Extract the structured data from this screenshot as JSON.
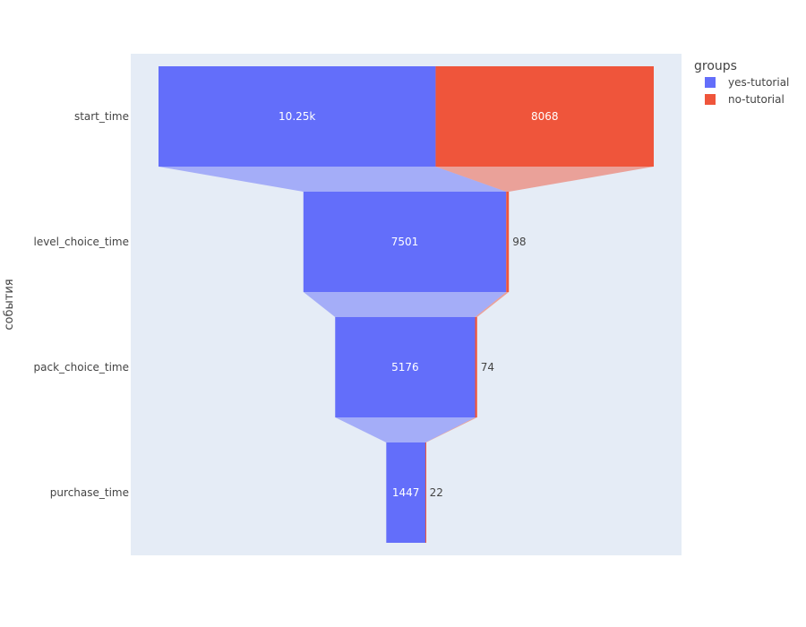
{
  "chart_data": {
    "type": "funnel",
    "ylabel": "события",
    "categories": [
      "start_time",
      "level_choice_time",
      "pack_choice_time",
      "purchase_time"
    ],
    "legend": {
      "title": "groups",
      "placement": "top-right"
    },
    "series": [
      {
        "name": "yes-tutorial",
        "color": "#636EFA",
        "values": [
          10250,
          7501,
          5176,
          1447
        ],
        "labels": [
          "10.25k",
          "7501",
          "5176",
          "1447"
        ]
      },
      {
        "name": "no-tutorial",
        "color": "#EF553B",
        "values": [
          8068,
          98,
          74,
          22
        ],
        "labels": [
          "8068",
          "98",
          "74",
          "22"
        ]
      }
    ],
    "plot_background": "#E5ECF6"
  }
}
